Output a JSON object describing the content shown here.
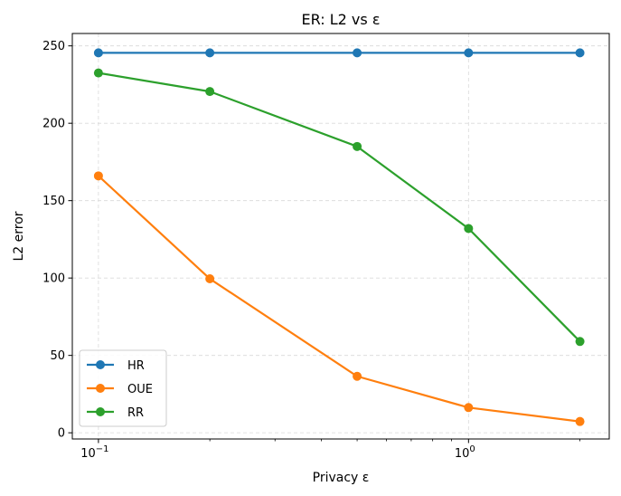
{
  "chart_data": {
    "type": "line",
    "title": "ER: L2 vs ε",
    "xlabel": "Privacy ε",
    "ylabel": "L2 error",
    "xscale": "log",
    "xlim": [
      0.085,
      2.4
    ],
    "ylim": [
      -4,
      258
    ],
    "x": [
      0.1,
      0.2,
      0.5,
      1.0,
      2.0
    ],
    "x_ticks": [
      {
        "value": 0.1,
        "base": "10",
        "exp": "−1"
      },
      {
        "value": 1.0,
        "base": "10",
        "exp": "0"
      }
    ],
    "y_ticks": [
      0,
      50,
      100,
      150,
      200,
      250
    ],
    "grid": true,
    "legend_position": "lower-left",
    "series": [
      {
        "name": "HR",
        "color": "#1f77b4",
        "values": [
          245.5,
          245.5,
          245.5,
          245.5,
          245.5
        ]
      },
      {
        "name": "OUE",
        "color": "#ff7f0e",
        "values": [
          166,
          99.5,
          36.5,
          16.3,
          7.3
        ]
      },
      {
        "name": "RR",
        "color": "#2ca02c",
        "values": [
          232.5,
          220.5,
          185,
          132,
          59
        ]
      }
    ]
  }
}
